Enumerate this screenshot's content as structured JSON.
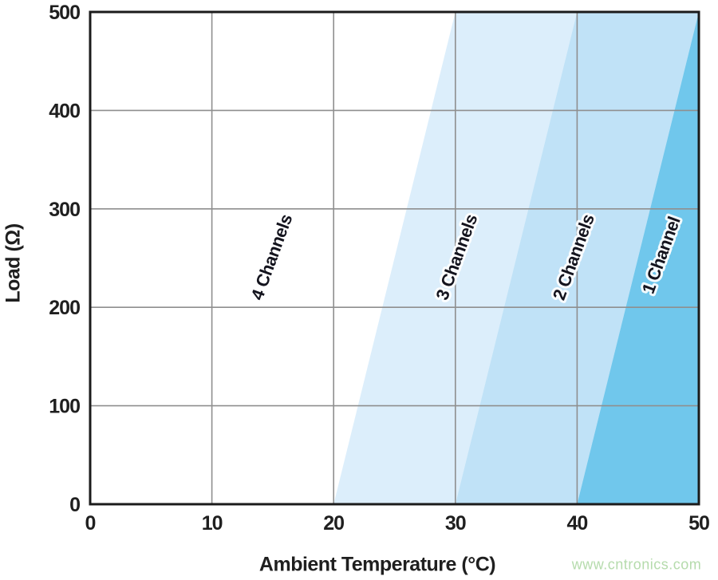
{
  "figure": {
    "watermark": "www.cntronics.com"
  },
  "chart_data": {
    "type": "area",
    "title": "",
    "xlabel": "Ambient Temperature (°C)",
    "ylabel": "Load (Ω)",
    "xlim": [
      0,
      50
    ],
    "ylim": [
      0,
      500
    ],
    "x_ticks": [
      0,
      10,
      20,
      30,
      40,
      50
    ],
    "y_ticks": [
      0,
      100,
      200,
      300,
      400,
      500
    ],
    "grid": true,
    "legend": "none",
    "label_rotation_deg": -70,
    "colors": {
      "grid": "#8f8f8f",
      "axis": "#1b1b1b",
      "text": "#1f1f1f",
      "label_halo": "#ffffff"
    },
    "regions": [
      {
        "label": "4 Channels",
        "fill": "#ffffff",
        "bottom_edge_x": [
          0,
          20
        ],
        "top_edge_x": [
          0,
          30
        ],
        "label_anchor": {
          "x": 14.9,
          "y": 251
        }
      },
      {
        "label": "3 Channels",
        "fill": "#dceefb",
        "bottom_edge_x": [
          20,
          30
        ],
        "top_edge_x": [
          30,
          40
        ],
        "label_anchor": {
          "x": 30.1,
          "y": 251
        }
      },
      {
        "label": "2 Channels",
        "fill": "#c0e2f7",
        "bottom_edge_x": [
          30,
          40
        ],
        "top_edge_x": [
          40,
          50
        ],
        "label_anchor": {
          "x": 39.7,
          "y": 251
        }
      },
      {
        "label": "1 Channel",
        "fill": "#70c7ec",
        "bottom_edge_x": [
          40,
          50
        ],
        "top_edge_x": [
          50,
          50
        ],
        "label_anchor": {
          "x": 46.9,
          "y": 253
        }
      }
    ]
  }
}
